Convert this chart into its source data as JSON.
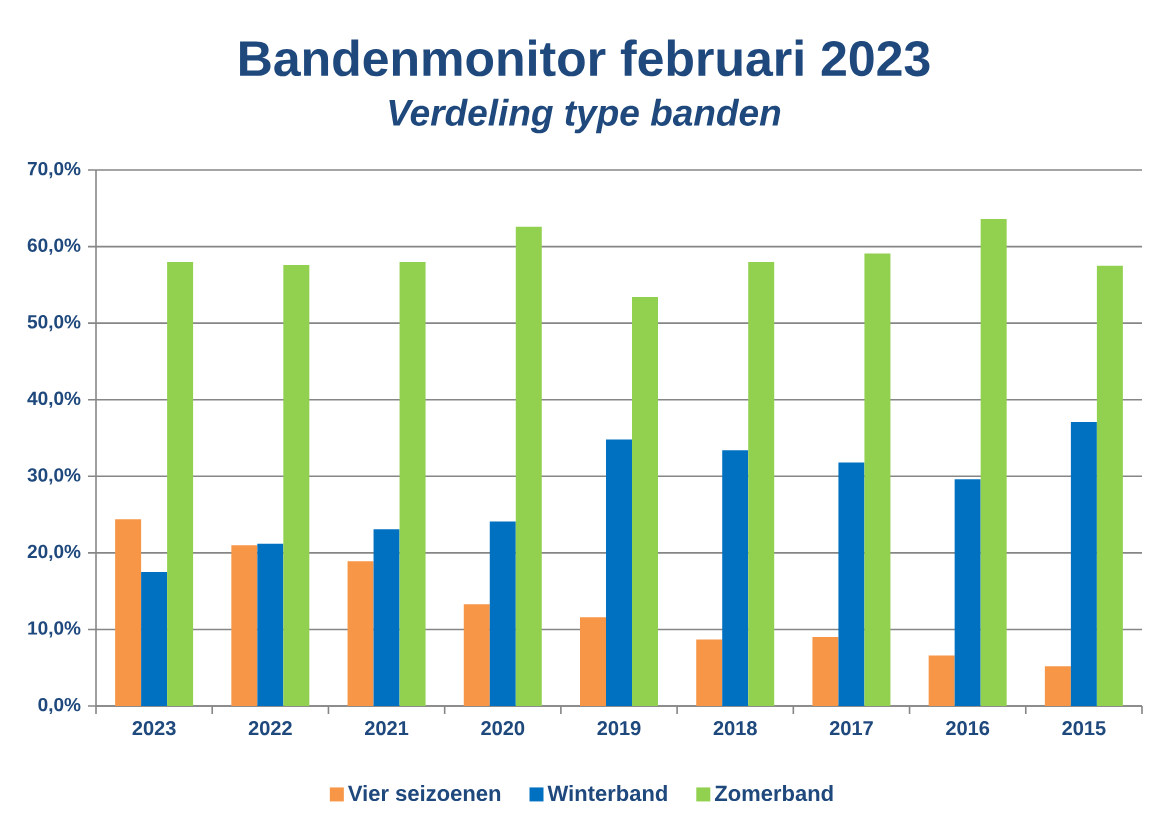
{
  "chart_data": {
    "type": "bar",
    "title": "Bandenmonitor februari 2023",
    "subtitle": "Verdeling type banden",
    "categories": [
      "2023",
      "2022",
      "2021",
      "2020",
      "2019",
      "2018",
      "2017",
      "2016",
      "2015"
    ],
    "series": [
      {
        "name": "Vier seizoenen",
        "color": "#f79646",
        "values": [
          24.4,
          21.0,
          18.9,
          13.3,
          11.6,
          8.7,
          9.0,
          6.6,
          5.2
        ]
      },
      {
        "name": "Winterband",
        "color": "#0070c0",
        "values": [
          17.5,
          21.2,
          23.1,
          24.1,
          34.8,
          33.4,
          31.8,
          29.6,
          37.1
        ]
      },
      {
        "name": "Zomerband",
        "color": "#92d050",
        "values": [
          58.0,
          57.6,
          58.0,
          62.6,
          53.4,
          58.0,
          59.1,
          63.6,
          57.5
        ]
      }
    ],
    "ylim": [
      0,
      70
    ],
    "yticks": [
      {
        "value": 0,
        "label": "0,0%"
      },
      {
        "value": 10,
        "label": "10,0%"
      },
      {
        "value": 20,
        "label": "20,0%"
      },
      {
        "value": 30,
        "label": "30,0%"
      },
      {
        "value": 40,
        "label": "40,0%"
      },
      {
        "value": 50,
        "label": "50,0%"
      },
      {
        "value": 60,
        "label": "60,0%"
      },
      {
        "value": 70,
        "label": "70,0%"
      }
    ],
    "grid": "y",
    "legend": "bottom"
  }
}
